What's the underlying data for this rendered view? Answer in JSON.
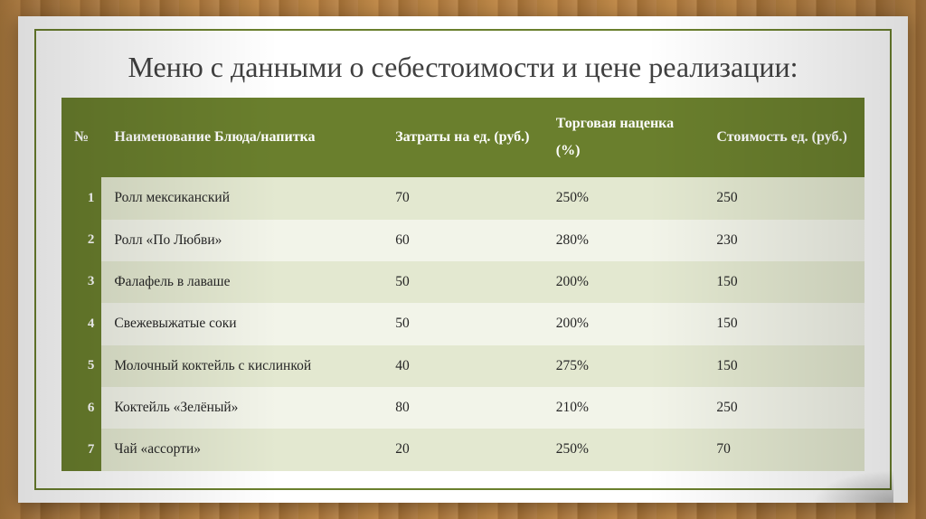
{
  "title": "Меню с данными о себестоимости и цене реализации:",
  "table": {
    "type": "table",
    "header_bg": "#6a7f2d",
    "header_color": "#ffffff",
    "row_odd_bg": "#e3e8d0",
    "row_even_bg": "#f2f4e9",
    "columns": {
      "num": "№",
      "name": "Наименование Блюда/напитка",
      "cost": "Затраты на ед. (руб.)",
      "markup": "Торговая наценка (%)",
      "price": "Стоимость ед. (руб.)"
    },
    "rows": [
      {
        "num": "1",
        "name": "Ролл мексиканский",
        "cost": "70",
        "markup": "250%",
        "price": "250"
      },
      {
        "num": "2",
        "name": "Ролл «По Любви»",
        "cost": "60",
        "markup": "280%",
        "price": "230"
      },
      {
        "num": "3",
        "name": "Фалафель в лаваше",
        "cost": "50",
        "markup": "200%",
        "price": "150"
      },
      {
        "num": "4",
        "name": "Свежевыжатые соки",
        "cost": "50",
        "markup": "200%",
        "price": "150"
      },
      {
        "num": "5",
        "name": "Молочный коктейль с кислинкой",
        "cost": "40",
        "markup": "275%",
        "price": "150"
      },
      {
        "num": "6",
        "name": "Коктейль «Зелёный»",
        "cost": "80",
        "markup": "210%",
        "price": "250"
      },
      {
        "num": "7",
        "name": "Чай «ассорти»",
        "cost": "20",
        "markup": "250%",
        "price": "70"
      }
    ]
  }
}
